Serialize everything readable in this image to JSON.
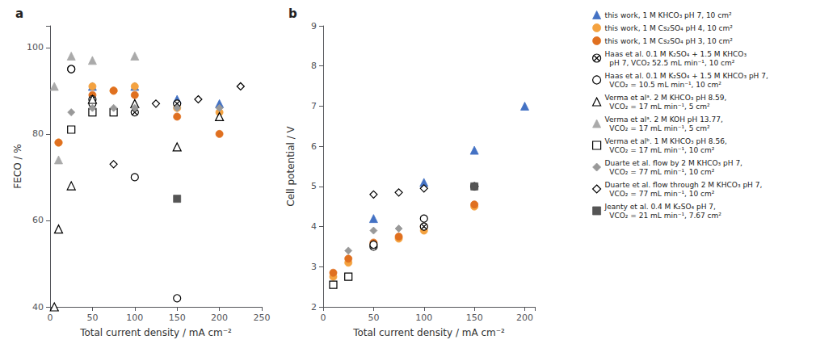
{
  "chart_data": [
    {
      "type": "scatter",
      "title": "a",
      "x_label": "Total current density / mA cm⁻²",
      "y_label": "FECO / %",
      "xlim": [
        0,
        250
      ],
      "ylim": [
        40,
        105
      ],
      "xticks": [
        0,
        50,
        100,
        150,
        200,
        250
      ],
      "yticks": [
        40,
        60,
        80,
        100
      ],
      "grid": false,
      "legend": "right",
      "series": [
        {
          "name": "this work, 1 M KHCO₃ pH 7, 10 cm²",
          "color": "#4472C4",
          "marker": "triangle",
          "x": [
            50,
            100,
            150,
            200
          ],
          "values": [
            91,
            91,
            88,
            87
          ]
        },
        {
          "name": "this work, 1 M Cs₂SO₄ pH 4, 10 cm²",
          "color": "#F4A240",
          "marker": "circle",
          "x": [
            10,
            50,
            75,
            100,
            150,
            200
          ],
          "values": [
            78,
            91,
            90,
            91,
            86,
            85
          ]
        },
        {
          "name": "this work, 1 M Cs₂SO₄ pH 3, 10 cm²",
          "color": "#E07020",
          "marker": "circle",
          "x": [
            10,
            50,
            75,
            100,
            150,
            200
          ],
          "values": [
            78,
            89,
            90,
            89,
            84,
            80
          ]
        },
        {
          "name": "Haas et al. 0.1 M K₂SO₄ + 1.5 M KHCO₃\n  pH 7, VCO₂ 52.5 mL min⁻¹, 10 cm²",
          "color": "black",
          "marker": "circled-x",
          "x": [
            25,
            50,
            100,
            150
          ],
          "values": [
            95,
            88,
            85,
            87
          ]
        },
        {
          "name": "Haas et al. 0.1 M K₂SO₄ + 1.5 M KHCO₃ pH 7,\n  VCO₂ = 10.5 mL min⁻¹, 10 cm²",
          "color": "black",
          "marker": "circle-open",
          "x": [
            25,
            50,
            100,
            150
          ],
          "values": [
            95,
            87,
            70,
            42
          ]
        },
        {
          "name": "Verma et alᵃ. 2 M KHCO₃ pH 8.59,\n  VCO₂ = 17 mL min⁻¹, 5 cm²",
          "color": "black",
          "marker": "triangle-open",
          "x": [
            5,
            10,
            25,
            50,
            100,
            150,
            200
          ],
          "values": [
            40,
            58,
            68,
            88,
            87,
            77,
            84
          ]
        },
        {
          "name": "Verma et alᵃ. 2 M KOH pH 13.77,\n  VCO₂ = 17 mL min⁻¹, 5 cm²",
          "color": "#AAAAAA",
          "marker": "triangle",
          "x": [
            5,
            10,
            25,
            50,
            100
          ],
          "values": [
            91,
            74,
            98,
            97,
            98
          ]
        },
        {
          "name": "Verma et alᵇ. 1 M KHCO₃ pH 8.56,\n  VCO₂ = 17 mL min⁻¹, 10 cm²",
          "color": "black",
          "marker": "square-open",
          "x": [
            25,
            50,
            75
          ],
          "values": [
            81,
            85,
            85
          ]
        },
        {
          "name": "Duarte et al. flow by 2 M KHCO₃ pH 7,\n  VCO₂ = 77 mL min⁻¹, 10 cm²",
          "color": "#999999",
          "marker": "diamond",
          "x": [
            25,
            50,
            75,
            100,
            150,
            200,
            225
          ],
          "values": [
            85,
            86,
            86,
            86,
            86,
            86,
            91
          ]
        },
        {
          "name": "Duarte et al. flow through 2 M KHCO₃ pH 7,\n  VCO₂ = 77 mL min⁻¹, 10 cm²",
          "color": "black",
          "marker": "diamond-open",
          "x": [
            75,
            125,
            175,
            225
          ],
          "values": [
            73,
            87,
            88,
            91
          ]
        },
        {
          "name": "Jeanty et al. 0.4 M K₂SO₄ pH 7,\n  VCO₂ = 21 mL min⁻¹, 7.67 cm²",
          "color": "#555555",
          "marker": "square",
          "x": [
            150
          ],
          "values": [
            65
          ]
        }
      ]
    },
    {
      "type": "scatter",
      "title": "b",
      "x_label": "Total current density / mA cm⁻²",
      "y_label": "Cell potential / V",
      "xlim": [
        0,
        210
      ],
      "ylim": [
        2,
        9
      ],
      "xticks": [
        0,
        50,
        100,
        150,
        200
      ],
      "yticks": [
        2,
        3,
        4,
        5,
        6,
        7,
        8,
        9
      ],
      "grid": false,
      "legend": "right",
      "series": [
        {
          "name": "this work, 1 M KHCO₃ pH 7, 10 cm²",
          "color": "#4472C4",
          "marker": "triangle",
          "x": [
            50,
            100,
            150,
            200
          ],
          "values": [
            4.2,
            5.1,
            5.9,
            7.0
          ]
        },
        {
          "name": "this work, 1 M Cs₂SO₄ pH 4, 10 cm²",
          "color": "#F4A240",
          "marker": "circle",
          "x": [
            10,
            25,
            50,
            75,
            100,
            150
          ],
          "values": [
            2.75,
            3.1,
            3.55,
            3.7,
            3.9,
            4.5
          ]
        },
        {
          "name": "this work, 1 M Cs₂SO₄ pH 3, 10 cm²",
          "color": "#E07020",
          "marker": "circle",
          "x": [
            10,
            25,
            50,
            75,
            100,
            150
          ],
          "values": [
            2.85,
            3.2,
            3.6,
            3.75,
            4.0,
            4.55
          ]
        },
        {
          "name": "Haas et al. 0.1 M K₂SO₄ + 1.5 M KHCO₃\n  pH 7, VCO₂ 52.5 mL min⁻¹, 10 cm²",
          "color": "black",
          "marker": "circled-x",
          "x": [
            50,
            100,
            150
          ],
          "values": [
            3.5,
            4.0,
            5.0
          ]
        },
        {
          "name": "Haas et al. 0.1 M K₂SO₄ + 1.5 M KHCO₃ pH 7,\n  VCO₂ = 10.5 mL min⁻¹, 10 cm²",
          "color": "black",
          "marker": "circle-open",
          "x": [
            50,
            100,
            150
          ],
          "values": [
            3.55,
            4.2,
            5.0
          ]
        },
        {
          "name": "Verma et alᵇ. 1 M KHCO₃ pH 8.56,\n  VCO₂ = 17 mL min⁻¹, 10 cm²",
          "color": "black",
          "marker": "square-open",
          "x": [
            10,
            25
          ],
          "values": [
            2.55,
            2.75
          ]
        },
        {
          "name": "Duarte et al. flow by 2 M KHCO₃ pH 7,\n  VCO₂ = 77 mL min⁻¹, 10 cm²",
          "color": "#999999",
          "marker": "diamond",
          "x": [
            25,
            50,
            75
          ],
          "values": [
            3.4,
            3.9,
            3.95
          ]
        },
        {
          "name": "Duarte et al. flow through 2 M KHCO₃ pH 7,\n  VCO₂ = 77 mL min⁻¹, 10 cm²",
          "color": "black",
          "marker": "diamond-open",
          "x": [
            50,
            75,
            100,
            150
          ],
          "values": [
            4.8,
            4.85,
            4.95,
            5.0
          ]
        },
        {
          "name": "Jeanty et al. 0.4 M K₂SO₄ pH 7,\n  VCO₂ = 21 mL min⁻¹, 7.67 cm²",
          "color": "#555555",
          "marker": "square",
          "x": [
            150
          ],
          "values": [
            5.0
          ]
        }
      ]
    }
  ]
}
